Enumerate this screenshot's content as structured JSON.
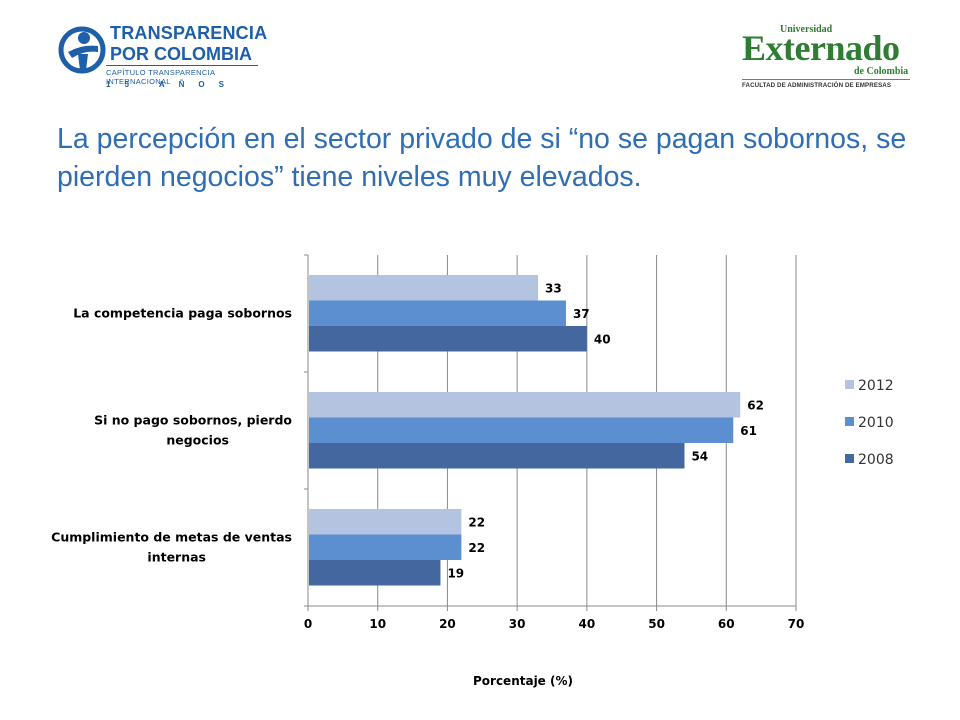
{
  "header": {
    "logo_left": {
      "line1": "TRANSPARENCIA",
      "line2": "POR COLOMBIA",
      "line3": "CAPÍTULO TRANSPARENCIA INTERNACIONAL",
      "line4": "15 AÑOS"
    },
    "logo_right": {
      "small": "Universidad",
      "big": "Externado",
      "sub": "de Colombia",
      "faculty": "FACULTAD DE ADMINISTRACIÓN DE EMPRESAS"
    }
  },
  "title": "La percepción en el sector privado de si “no se pagan sobornos, se pierden negocios” tiene niveles muy elevados.",
  "colors": {
    "title": "#2f6eb5",
    "s2012": "#b4c3e0",
    "s2010": "#5b8fcf",
    "s2008": "#44679f"
  },
  "chart_data": {
    "type": "bar",
    "orientation": "horizontal",
    "categories": [
      [
        "La competencia paga sobornos"
      ],
      [
        "Si no pago sobornos, pierdo",
        "negocios"
      ],
      [
        "Cumplimiento de metas de ventas",
        "internas"
      ]
    ],
    "series": [
      {
        "name": "2012",
        "values": [
          33,
          62,
          22
        ]
      },
      {
        "name": "2010",
        "values": [
          37,
          61,
          22
        ]
      },
      {
        "name": "2008",
        "values": [
          40,
          54,
          19
        ]
      }
    ],
    "xlabel": "Porcentaje (%)",
    "xlim": [
      0,
      70
    ],
    "xticks": [
      0,
      10,
      20,
      30,
      40,
      50,
      60,
      70
    ],
    "grid": true,
    "legend": "right"
  }
}
